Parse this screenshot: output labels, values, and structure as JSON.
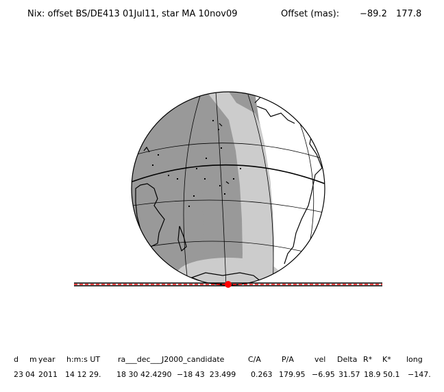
{
  "title": {
    "main": "Nix: offset BS/DE413 01Jul11, star MA 10nov09",
    "offset_label": "Offset (mas):",
    "offset_x": "−89.2",
    "offset_y": "177.8"
  },
  "colors": {
    "night": "#999999",
    "twilight": "#cccccc",
    "day": "#ffffff",
    "outline": "#000000",
    "track_line": "#000000",
    "track_dash": "#ff0000",
    "marker": "#ff0000"
  },
  "table": {
    "headers": [
      "d",
      "m",
      "year",
      "h:m:s UT",
      "ra___dec___J2000_candidate",
      "C/A",
      "P/A",
      "vel",
      "Delta",
      "R*",
      "K*",
      "long"
    ],
    "values": [
      "23",
      "04",
      "2011",
      "14 12 29.",
      "18 30 42.4290",
      "−18 43  23.499",
      "0.263",
      "179.95",
      "−6.95",
      "31.57",
      "18.9",
      "50.1",
      "−147."
    ]
  }
}
